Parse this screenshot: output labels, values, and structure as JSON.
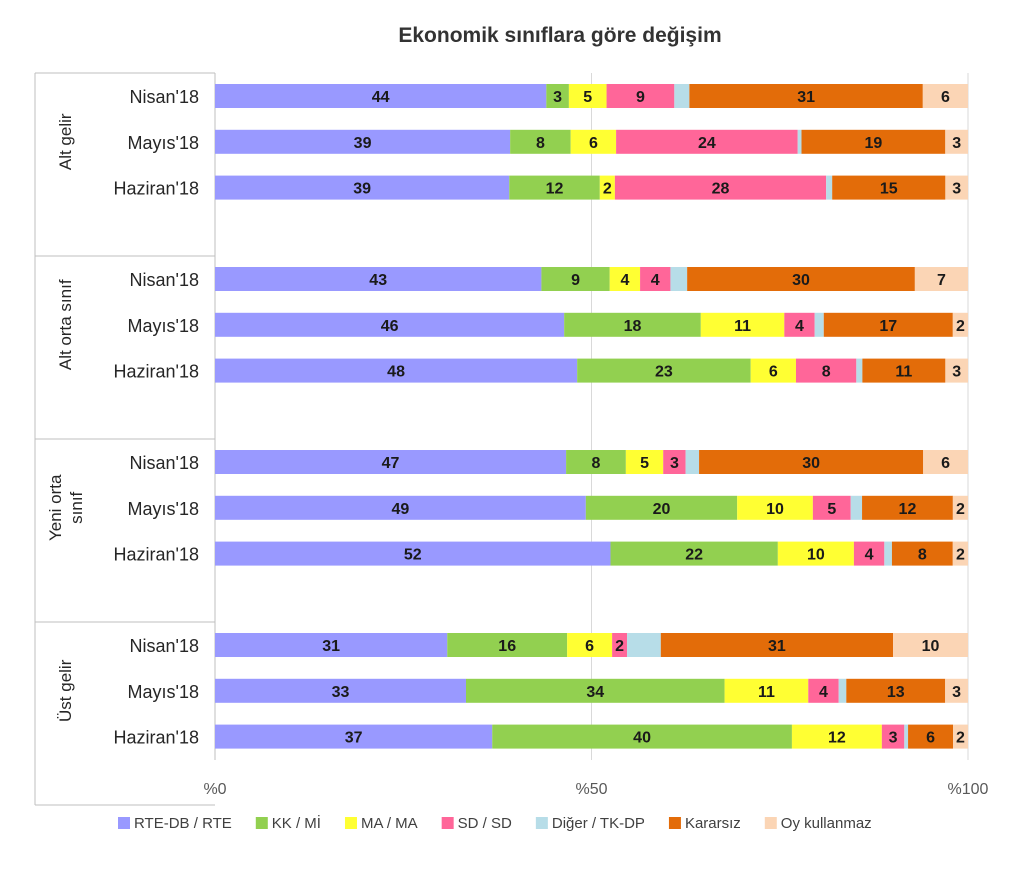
{
  "chart_data": {
    "type": "bar",
    "orientation": "horizontal",
    "stacked": true,
    "title": "Ekonomik sınıflara göre değişim",
    "xlim": [
      0,
      100
    ],
    "x_ticks": [
      "%0",
      "%50",
      "%100"
    ],
    "grid": true,
    "legend_position": "bottom",
    "groups": [
      {
        "name": "Alt gelir",
        "categories": [
          "Nisan'18",
          "Mayıs'18",
          "Haziran'18"
        ]
      },
      {
        "name": "Alt orta sınıf",
        "categories": [
          "Nisan'18",
          "Mayıs'18",
          "Haziran'18"
        ]
      },
      {
        "name": "Yeni orta sınıf",
        "categories": [
          "Nisan'18",
          "Mayıs'18",
          "Haziran'18"
        ]
      },
      {
        "name": "Üst gelir",
        "categories": [
          "Nisan'18",
          "Mayıs'18",
          "Haziran'18"
        ]
      }
    ],
    "series": [
      {
        "name": "RTE-DB / RTE",
        "color": "#9999ff",
        "values": [
          44,
          39,
          39,
          43,
          46,
          48,
          47,
          49,
          52,
          31,
          33,
          37
        ]
      },
      {
        "name": "KK / Mİ",
        "color": "#92d050",
        "values": [
          3,
          8,
          12,
          9,
          18,
          23,
          8,
          20,
          22,
          16,
          34,
          40
        ]
      },
      {
        "name": "MA / MA",
        "color": "#ffff33",
        "values": [
          5,
          6,
          2,
          4,
          11,
          6,
          5,
          10,
          10,
          6,
          11,
          12
        ]
      },
      {
        "name": "SD / SD",
        "color": "#ff6699",
        "values": [
          9,
          24,
          28,
          4,
          4,
          8,
          3,
          5,
          4,
          2,
          4,
          3
        ]
      },
      {
        "name": "Diğer / TK-DP",
        "color": "#b7dde8",
        "values": [
          2,
          0.5,
          0.8,
          2.2,
          1.2,
          0.8,
          1.8,
          1.5,
          1,
          4.5,
          1,
          0.5
        ]
      },
      {
        "name": "Kararsız",
        "color": "#e36c09",
        "values": [
          31,
          19,
          15,
          30,
          17,
          11,
          30,
          12,
          8,
          31,
          13,
          6
        ]
      },
      {
        "name": "Oy kullanmaz",
        "color": "#fbd5b5",
        "values": [
          6,
          3,
          3,
          7,
          2,
          3,
          6,
          2,
          2,
          10,
          3,
          2
        ]
      }
    ],
    "data_labels": [
      [
        "44",
        "3",
        "5",
        "9",
        "",
        "31",
        "6"
      ],
      [
        "39",
        "8",
        "6",
        "24",
        "",
        "19",
        "3"
      ],
      [
        "39",
        "12",
        "2",
        "28",
        "",
        "15",
        "3"
      ],
      [
        "43",
        "9",
        "4",
        "4",
        "",
        "30",
        "7"
      ],
      [
        "46",
        "18",
        "11",
        "4",
        "",
        "17",
        "2"
      ],
      [
        "48",
        "23",
        "6",
        "8",
        "",
        "11",
        "3"
      ],
      [
        "47",
        "8",
        "5",
        "3",
        "",
        "30",
        "6"
      ],
      [
        "49",
        "20",
        "10",
        "5",
        "",
        "12",
        "2"
      ],
      [
        "52",
        "22",
        "10",
        "4",
        "",
        "8",
        "2"
      ],
      [
        "31",
        "16",
        "6",
        "2",
        "",
        "31",
        "10"
      ],
      [
        "33",
        "34",
        "11",
        "4",
        "",
        "13",
        "3"
      ],
      [
        "37",
        "40",
        "12",
        "3",
        "",
        "6",
        "2"
      ]
    ]
  }
}
